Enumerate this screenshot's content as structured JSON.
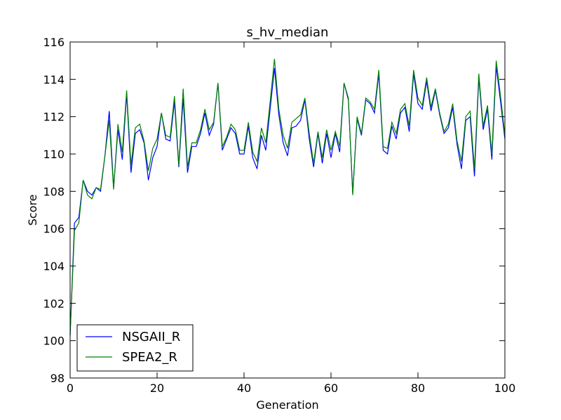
{
  "chart_data": {
    "type": "line",
    "title": "s_hv_median",
    "xlabel": "Generation",
    "ylabel": "Score",
    "xlim": [
      0,
      100
    ],
    "ylim": [
      98,
      116
    ],
    "xticks": [
      0,
      20,
      40,
      60,
      80,
      100
    ],
    "yticks": [
      98,
      100,
      102,
      104,
      106,
      108,
      110,
      112,
      114,
      116
    ],
    "grid": false,
    "legend_position": "lower-left",
    "x": [
      0,
      1,
      2,
      3,
      4,
      5,
      6,
      7,
      8,
      9,
      10,
      11,
      12,
      13,
      14,
      15,
      16,
      17,
      18,
      19,
      20,
      21,
      22,
      23,
      24,
      25,
      26,
      27,
      28,
      29,
      30,
      31,
      32,
      33,
      34,
      35,
      36,
      37,
      38,
      39,
      40,
      41,
      42,
      43,
      44,
      45,
      46,
      47,
      48,
      49,
      50,
      51,
      52,
      53,
      54,
      55,
      56,
      57,
      58,
      59,
      60,
      61,
      62,
      63,
      64,
      65,
      66,
      67,
      68,
      69,
      70,
      71,
      72,
      73,
      74,
      75,
      76,
      77,
      78,
      79,
      80,
      81,
      82,
      83,
      84,
      85,
      86,
      87,
      88,
      89,
      90,
      91,
      92,
      93,
      94,
      95,
      96,
      97,
      98,
      99,
      100
    ],
    "series": [
      {
        "name": "NSGAII_R",
        "color": "#0000ff",
        "values": [
          100.3,
          106.3,
          106.6,
          108.6,
          108.0,
          107.8,
          108.2,
          108.0,
          109.9,
          112.3,
          108.2,
          111.3,
          109.7,
          113.2,
          109.0,
          111.1,
          111.3,
          110.6,
          108.6,
          109.8,
          110.4,
          112.2,
          110.8,
          110.7,
          112.8,
          109.3,
          113.0,
          109.0,
          110.4,
          110.4,
          111.1,
          112.2,
          111.0,
          111.6,
          113.8,
          110.2,
          110.8,
          111.4,
          111.1,
          110.0,
          110.0,
          111.5,
          109.8,
          109.2,
          111.0,
          110.2,
          112.4,
          114.6,
          112.1,
          110.6,
          109.9,
          111.4,
          111.5,
          111.8,
          112.9,
          110.8,
          109.3,
          111.1,
          109.5,
          111.1,
          109.8,
          111.1,
          110.1,
          113.8,
          112.9,
          107.9,
          111.9,
          111.0,
          112.9,
          112.7,
          112.2,
          114.3,
          110.2,
          110.0,
          111.5,
          110.8,
          112.2,
          112.5,
          111.2,
          114.3,
          112.7,
          112.4,
          113.9,
          112.3,
          113.4,
          112.1,
          111.1,
          111.4,
          112.5,
          110.5,
          109.2,
          111.8,
          112.0,
          108.8,
          114.1,
          111.3,
          112.4,
          109.7,
          114.7,
          112.8,
          110.8
        ]
      },
      {
        "name": "SPEA2_R",
        "color": "#008000",
        "values": [
          100.3,
          105.9,
          106.3,
          108.6,
          107.8,
          107.6,
          108.2,
          108.1,
          109.9,
          111.8,
          108.1,
          111.6,
          110.1,
          113.4,
          109.4,
          111.4,
          111.6,
          110.7,
          109.1,
          110.3,
          110.8,
          112.2,
          111.0,
          110.9,
          113.1,
          109.4,
          113.5,
          109.3,
          110.6,
          110.6,
          111.3,
          112.4,
          111.3,
          111.7,
          113.8,
          110.4,
          110.9,
          111.6,
          111.3,
          110.2,
          110.2,
          111.7,
          110.1,
          109.6,
          111.4,
          110.6,
          112.8,
          115.1,
          112.4,
          111.0,
          110.3,
          111.7,
          111.9,
          112.1,
          113.0,
          111.1,
          109.5,
          111.2,
          109.8,
          111.3,
          110.2,
          111.2,
          110.4,
          113.8,
          113.0,
          107.8,
          112.0,
          111.1,
          113.0,
          112.8,
          112.4,
          114.5,
          110.4,
          110.3,
          111.7,
          111.1,
          112.4,
          112.7,
          111.5,
          114.5,
          113.0,
          112.6,
          114.1,
          112.5,
          113.5,
          112.2,
          111.2,
          111.6,
          112.7,
          110.7,
          109.6,
          112.0,
          112.3,
          109.2,
          114.3,
          111.5,
          112.6,
          110.0,
          115.0,
          113.1,
          111.0
        ]
      }
    ]
  }
}
